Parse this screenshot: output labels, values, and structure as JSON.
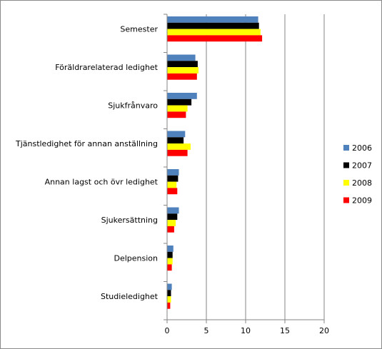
{
  "chart_data": {
    "type": "bar",
    "orientation": "horizontal",
    "title": "",
    "xlabel": "",
    "ylabel": "",
    "categories": [
      "Semester",
      "Föräldrarelaterad ledighet",
      "Sjukfrånvaro",
      "Tjänstledighet för annan anställning",
      "Annan lagst och övr ledighet",
      "Sjukersättning",
      "Delpension",
      "Studieledighet"
    ],
    "series": [
      {
        "name": "2006",
        "color": "#4f81bd",
        "values": [
          11.6,
          3.6,
          3.8,
          2.3,
          1.5,
          1.5,
          0.8,
          0.6
        ]
      },
      {
        "name": "2007",
        "color": "#000000",
        "values": [
          11.7,
          3.9,
          3.1,
          2.1,
          1.4,
          1.3,
          0.7,
          0.5
        ]
      },
      {
        "name": "2008",
        "color": "#ffff00",
        "values": [
          11.9,
          4.0,
          2.6,
          3.0,
          1.2,
          1.1,
          0.7,
          0.5
        ]
      },
      {
        "name": "2009",
        "color": "#ff0000",
        "values": [
          12.1,
          3.8,
          2.4,
          2.6,
          1.3,
          0.9,
          0.6,
          0.4
        ]
      }
    ],
    "xlim": [
      0,
      20
    ],
    "xticks": [
      "0",
      "5",
      "10",
      "15",
      "20"
    ],
    "grid": "vertical",
    "legend": "right"
  }
}
